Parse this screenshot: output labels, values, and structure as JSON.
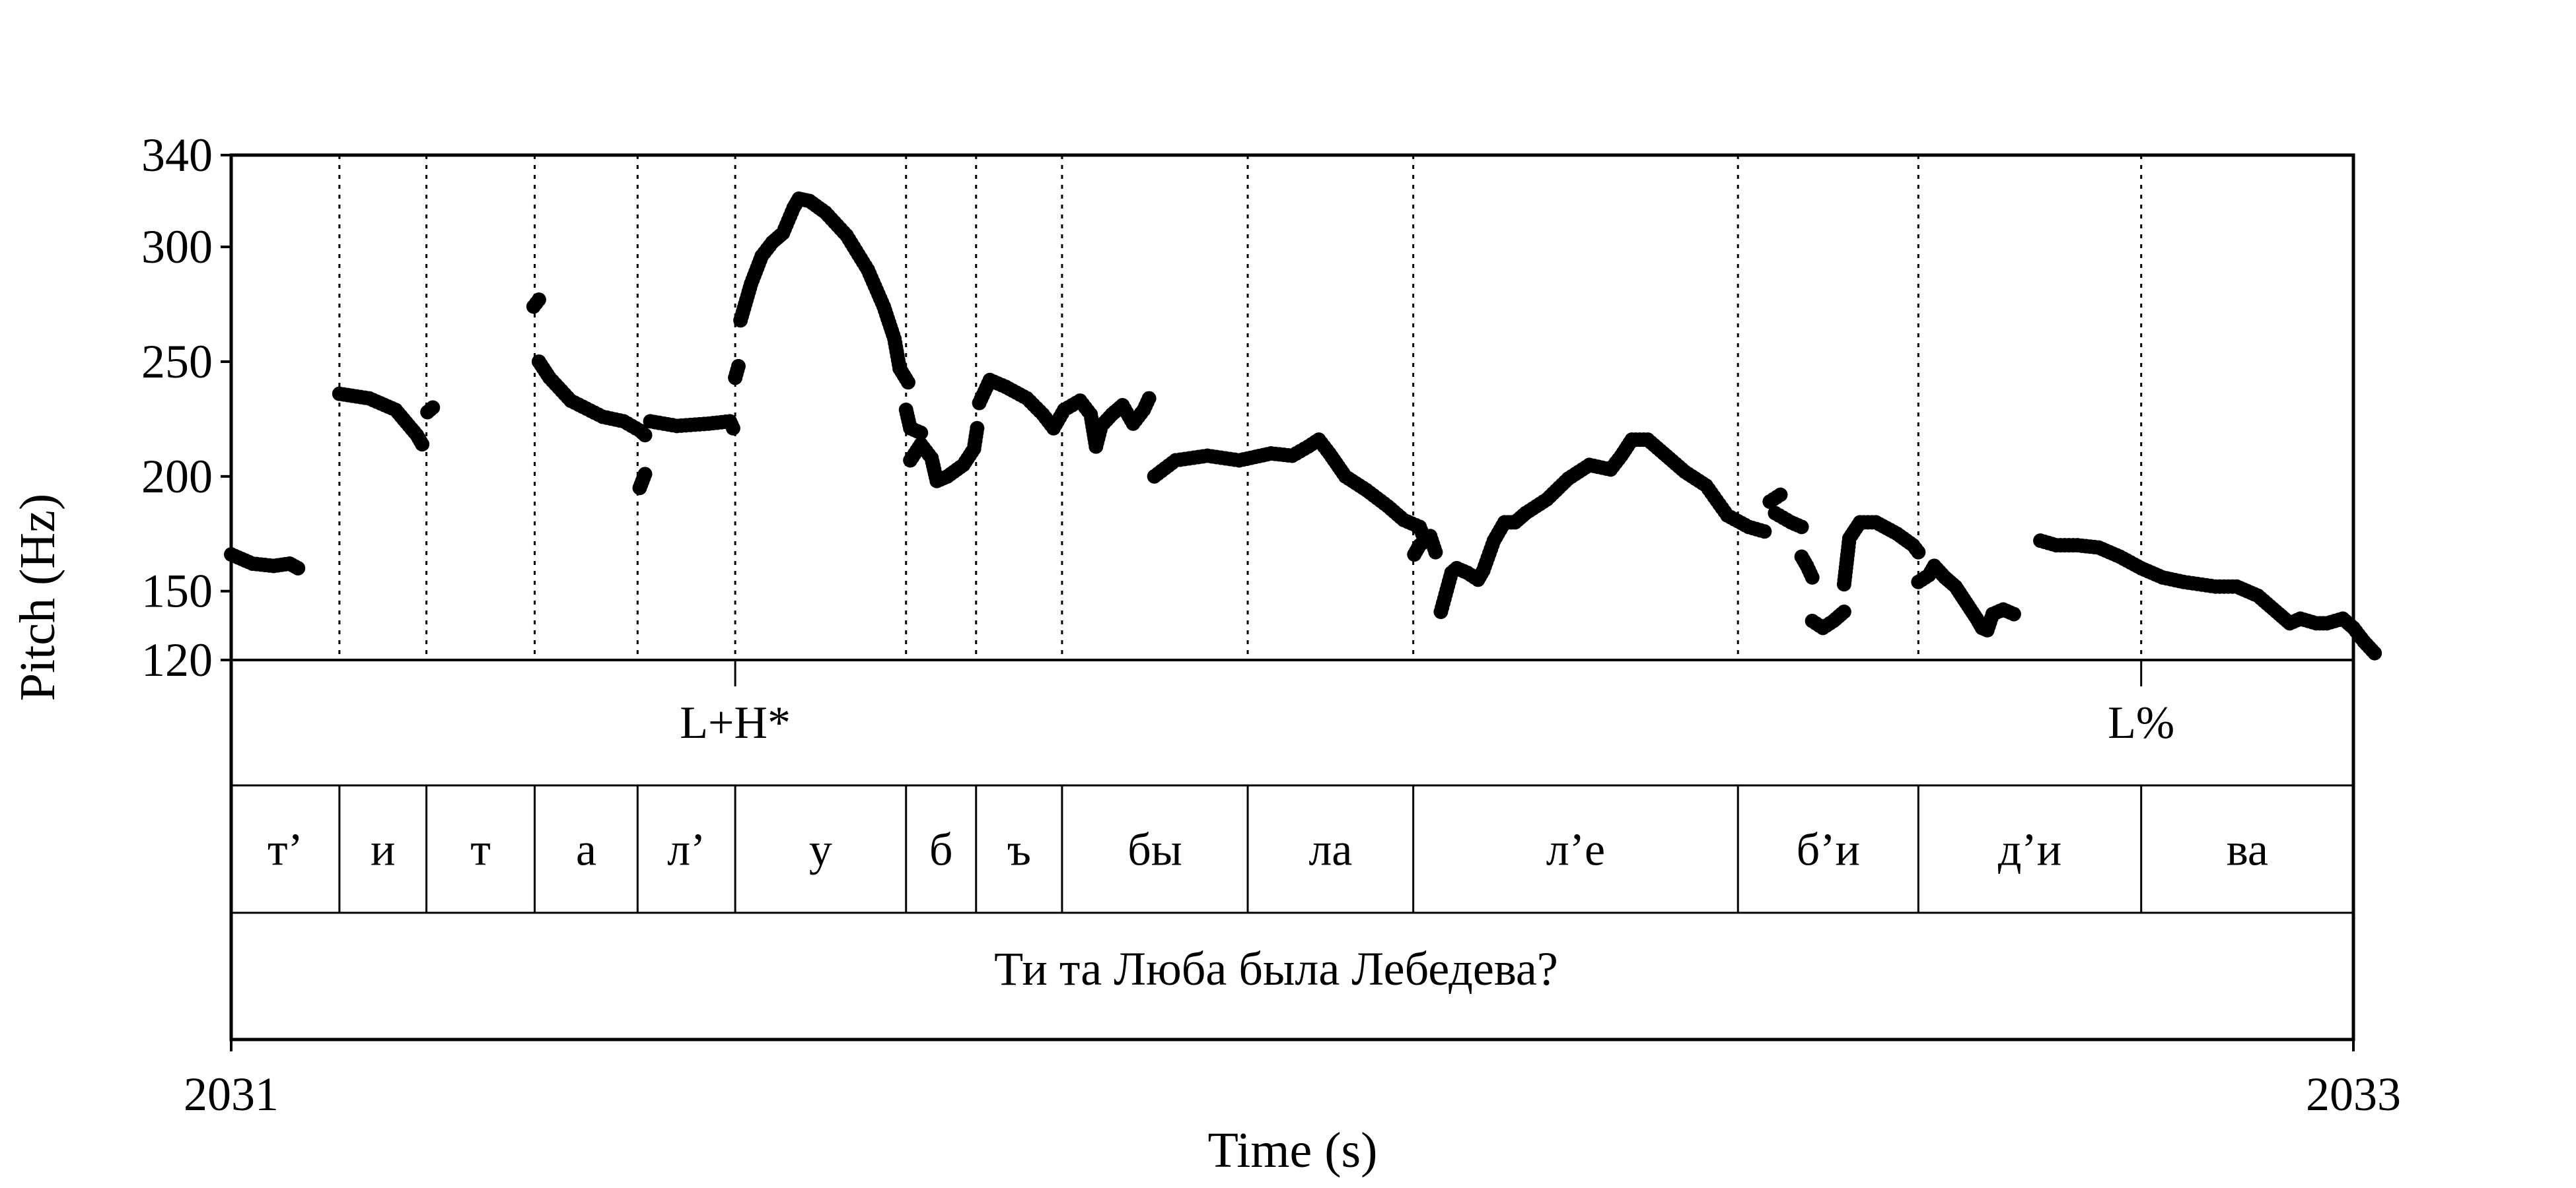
{
  "chart_data": {
    "type": "scatter",
    "title": "",
    "xlabel": "Time (s)",
    "ylabel": "Pitch (Hz)",
    "xlim": [
      2031,
      2033
    ],
    "x_tick_labels": [
      "2031",
      "2033"
    ],
    "ylim": [
      120,
      340
    ],
    "y_ticks": [
      120,
      150,
      200,
      250,
      300,
      340
    ],
    "y_tick_labels": [
      "120",
      "150",
      "200",
      "250",
      "300",
      "340"
    ],
    "marker_color": "#000000",
    "tones": [
      {
        "label": "L+H*",
        "time": 2031.475
      },
      {
        "label": "L%",
        "time": 2032.8
      }
    ],
    "segment_boundaries": [
      2031.102,
      2031.184,
      2031.286,
      2031.383,
      2031.475,
      2031.636,
      2031.702,
      2031.783,
      2031.958,
      2032.114,
      2032.42,
      2032.59,
      2032.8
    ],
    "segments": [
      {
        "label": "т’",
        "start": 2031.0,
        "end": 2031.102
      },
      {
        "label": "и",
        "start": 2031.102,
        "end": 2031.184
      },
      {
        "label": "т",
        "start": 2031.184,
        "end": 2031.286
      },
      {
        "label": "а",
        "start": 2031.286,
        "end": 2031.383
      },
      {
        "label": "л’",
        "start": 2031.383,
        "end": 2031.475
      },
      {
        "label": "у",
        "start": 2031.475,
        "end": 2031.636
      },
      {
        "label": "б",
        "start": 2031.636,
        "end": 2031.702
      },
      {
        "label": "ъ",
        "start": 2031.702,
        "end": 2031.783
      },
      {
        "label": "бы",
        "start": 2031.783,
        "end": 2031.958
      },
      {
        "label": "ла",
        "start": 2031.958,
        "end": 2032.114
      },
      {
        "label": "л’е",
        "start": 2032.114,
        "end": 2032.42
      },
      {
        "label": "б’и",
        "start": 2032.42,
        "end": 2032.59
      },
      {
        "label": "д’и",
        "start": 2032.59,
        "end": 2032.8
      },
      {
        "label": "ва",
        "start": 2032.8,
        "end": 2033.0
      }
    ],
    "sentence": "Ти та Люба была Лебедева?",
    "pitch_anchors": [
      [
        [
          2031.0,
          166
        ],
        [
          2031.02,
          162
        ],
        [
          2031.04,
          161
        ],
        [
          2031.055,
          162
        ],
        [
          2031.063,
          160
        ]
      ],
      [
        [
          2031.102,
          236
        ],
        [
          2031.13,
          234
        ],
        [
          2031.155,
          229
        ],
        [
          2031.175,
          218
        ],
        [
          2031.18,
          214
        ]
      ],
      [
        [
          2031.185,
          228
        ],
        [
          2031.19,
          230
        ]
      ],
      [
        [
          2031.285,
          274
        ],
        [
          2031.29,
          277
        ]
      ],
      [
        [
          2031.29,
          250
        ],
        [
          2031.3,
          243
        ],
        [
          2031.32,
          233
        ],
        [
          2031.35,
          226
        ],
        [
          2031.37,
          224
        ],
        [
          2031.385,
          220
        ],
        [
          2031.39,
          218
        ]
      ],
      [
        [
          2031.385,
          195
        ],
        [
          2031.39,
          201
        ]
      ],
      [
        [
          2031.395,
          224
        ],
        [
          2031.42,
          222
        ],
        [
          2031.45,
          223
        ],
        [
          2031.47,
          224
        ],
        [
          2031.473,
          221
        ]
      ],
      [
        [
          2031.475,
          243
        ],
        [
          2031.478,
          248
        ]
      ],
      [
        [
          2031.48,
          268
        ],
        [
          2031.49,
          284
        ],
        [
          2031.5,
          296
        ],
        [
          2031.51,
          302
        ],
        [
          2031.52,
          306
        ],
        [
          2031.53,
          317
        ],
        [
          2031.535,
          321
        ],
        [
          2031.545,
          320
        ],
        [
          2031.56,
          315
        ],
        [
          2031.58,
          305
        ],
        [
          2031.6,
          290
        ],
        [
          2031.615,
          274
        ],
        [
          2031.625,
          260
        ],
        [
          2031.63,
          247
        ],
        [
          2031.638,
          241
        ]
      ],
      [
        [
          2031.636,
          229
        ],
        [
          2031.64,
          221
        ],
        [
          2031.65,
          219
        ]
      ],
      [
        [
          2031.64,
          207
        ],
        [
          2031.65,
          214
        ],
        [
          2031.66,
          208
        ],
        [
          2031.665,
          198
        ],
        [
          2031.675,
          200
        ],
        [
          2031.69,
          205
        ],
        [
          2031.7,
          212
        ],
        [
          2031.703,
          221
        ]
      ],
      [
        [
          2031.705,
          232
        ],
        [
          2031.715,
          242
        ],
        [
          2031.73,
          239
        ],
        [
          2031.75,
          234
        ],
        [
          2031.765,
          227
        ],
        [
          2031.775,
          221
        ],
        [
          2031.785,
          229
        ],
        [
          2031.8,
          233
        ],
        [
          2031.81,
          227
        ],
        [
          2031.815,
          213
        ],
        [
          2031.82,
          222
        ],
        [
          2031.83,
          227
        ],
        [
          2031.84,
          231
        ],
        [
          2031.85,
          223
        ],
        [
          2031.86,
          229
        ],
        [
          2031.865,
          234
        ]
      ],
      [
        [
          2031.87,
          200
        ],
        [
          2031.89,
          207
        ],
        [
          2031.92,
          209
        ],
        [
          2031.95,
          207
        ],
        [
          2031.98,
          210
        ],
        [
          2032.0,
          209
        ],
        [
          2032.015,
          213
        ],
        [
          2032.025,
          216
        ],
        [
          2032.035,
          210
        ],
        [
          2032.05,
          200
        ],
        [
          2032.07,
          194
        ],
        [
          2032.09,
          187
        ],
        [
          2032.105,
          181
        ],
        [
          2032.12,
          178
        ],
        [
          2032.125,
          172
        ]
      ],
      [
        [
          2032.115,
          166
        ],
        [
          2032.12,
          170
        ],
        [
          2032.13,
          174
        ],
        [
          2032.135,
          167
        ]
      ],
      [
        [
          2032.14,
          141
        ],
        [
          2032.15,
          158
        ],
        [
          2032.155,
          160
        ],
        [
          2032.165,
          158
        ],
        [
          2032.175,
          155
        ],
        [
          2032.18,
          159
        ],
        [
          2032.19,
          172
        ],
        [
          2032.2,
          180
        ],
        [
          2032.21,
          180
        ],
        [
          2032.22,
          184
        ],
        [
          2032.24,
          190
        ],
        [
          2032.26,
          199
        ],
        [
          2032.28,
          205
        ],
        [
          2032.3,
          203
        ],
        [
          2032.31,
          209
        ],
        [
          2032.32,
          216
        ],
        [
          2032.335,
          216
        ],
        [
          2032.35,
          210
        ],
        [
          2032.37,
          202
        ],
        [
          2032.39,
          196
        ],
        [
          2032.41,
          183
        ],
        [
          2032.43,
          178
        ],
        [
          2032.445,
          176
        ]
      ],
      [
        [
          2032.45,
          189
        ],
        [
          2032.46,
          192
        ]
      ],
      [
        [
          2032.455,
          184
        ],
        [
          2032.47,
          180
        ],
        [
          2032.48,
          178
        ]
      ],
      [
        [
          2032.48,
          165
        ],
        [
          2032.485,
          161
        ],
        [
          2032.49,
          156
        ]
      ],
      [
        [
          2032.49,
          137
        ],
        [
          2032.5,
          134
        ],
        [
          2032.51,
          137
        ],
        [
          2032.52,
          141
        ]
      ],
      [
        [
          2032.52,
          153
        ],
        [
          2032.525,
          173
        ],
        [
          2032.535,
          180
        ],
        [
          2032.55,
          180
        ],
        [
          2032.57,
          175
        ],
        [
          2032.585,
          170
        ],
        [
          2032.59,
          167
        ]
      ],
      [
        [
          2032.59,
          154
        ],
        [
          2032.6,
          157
        ],
        [
          2032.605,
          161
        ],
        [
          2032.615,
          156
        ],
        [
          2032.625,
          152
        ],
        [
          2032.635,
          145
        ],
        [
          2032.645,
          138
        ],
        [
          2032.65,
          134
        ],
        [
          2032.655,
          133
        ],
        [
          2032.66,
          140
        ],
        [
          2032.67,
          142
        ],
        [
          2032.68,
          140
        ]
      ],
      [
        [
          2032.705,
          172
        ],
        [
          2032.72,
          170
        ],
        [
          2032.74,
          170
        ],
        [
          2032.76,
          169
        ],
        [
          2032.78,
          165
        ],
        [
          2032.8,
          160
        ],
        [
          2032.82,
          156
        ],
        [
          2032.84,
          154
        ],
        [
          2032.87,
          152
        ],
        [
          2032.89,
          152
        ],
        [
          2032.91,
          148
        ],
        [
          2032.93,
          140
        ],
        [
          2032.94,
          136
        ],
        [
          2032.95,
          138
        ],
        [
          2032.965,
          136
        ],
        [
          2032.975,
          136
        ],
        [
          2032.99,
          138
        ],
        [
          2033.0,
          134
        ],
        [
          2033.01,
          128
        ],
        [
          2033.02,
          123
        ]
      ]
    ]
  }
}
